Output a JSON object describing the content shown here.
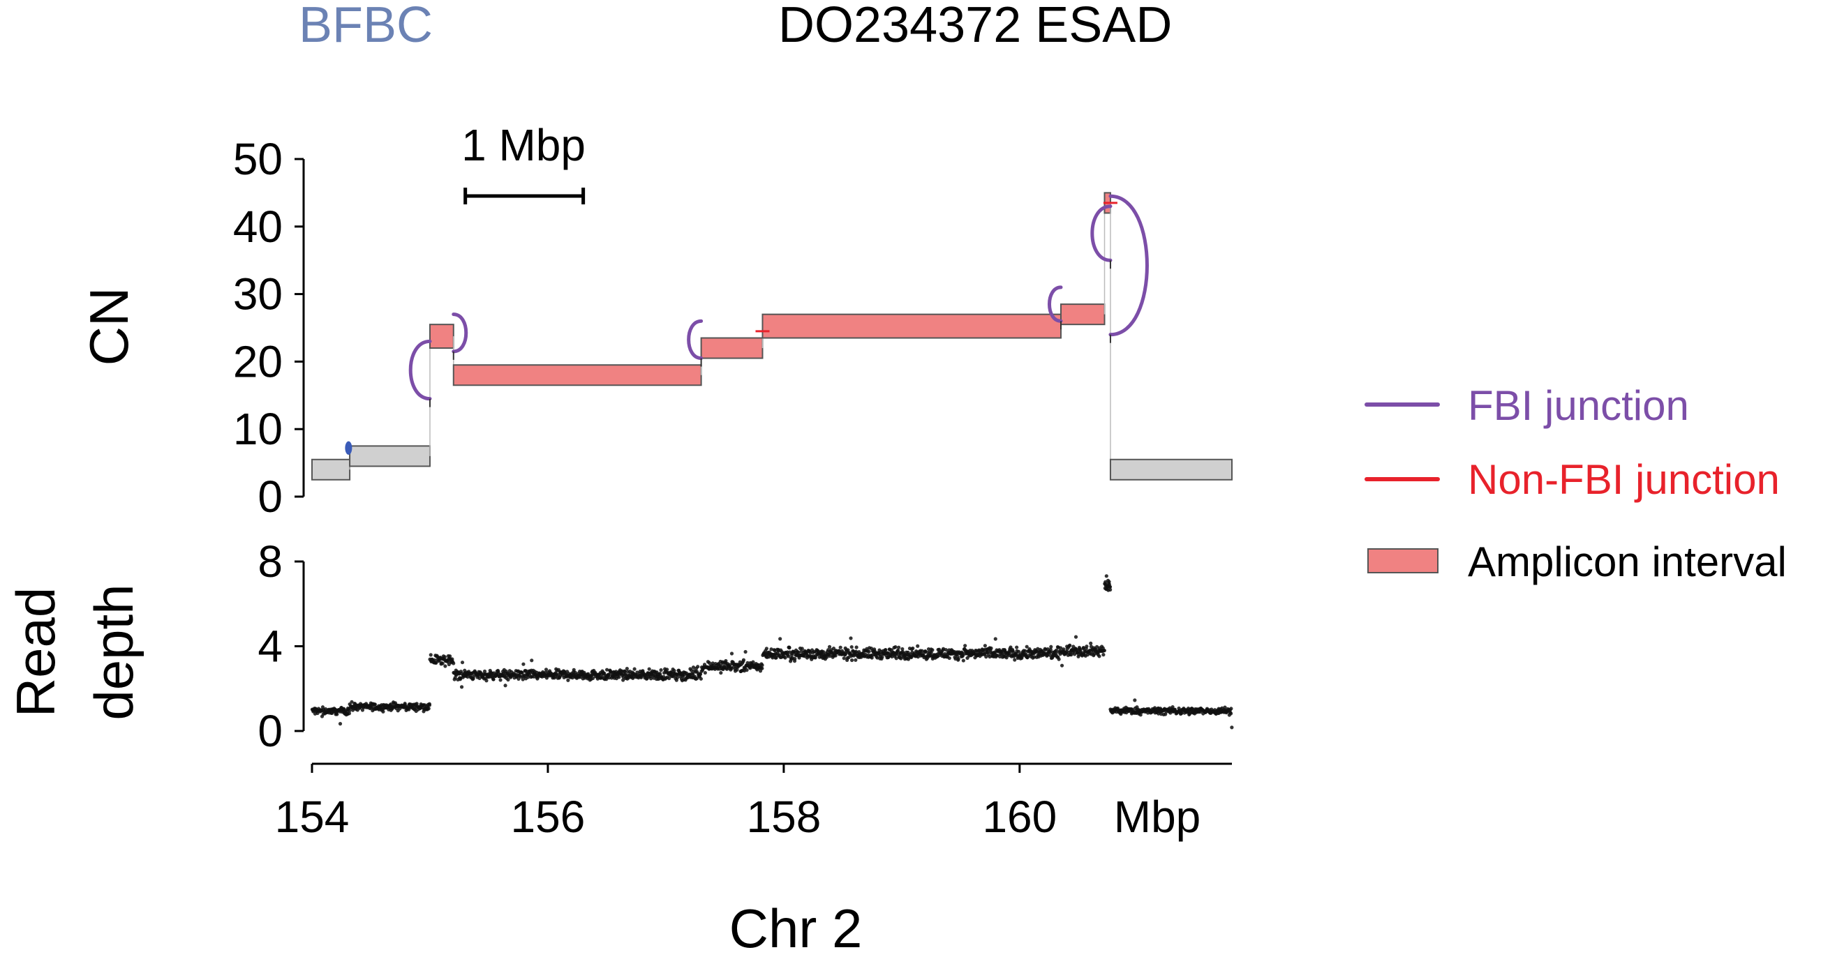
{
  "header": {
    "classification": "BFBC",
    "sample": "DO234372 ESAD"
  },
  "colors": {
    "classification": "#6b82b4",
    "fbi_junction": "#7c4ea8",
    "non_fbi_junction": "#e8222b",
    "amplicon": "#f08282",
    "background_interval": "#d0d0d0",
    "outline": "#555555",
    "read_points": "#111111"
  },
  "scale_bar": {
    "label": "1 Mbp",
    "start": 155.3,
    "end": 156.3
  },
  "legend": {
    "items": [
      {
        "label": "FBI junction",
        "kind": "line",
        "color_key": "fbi_junction"
      },
      {
        "label": "Non-FBI junction",
        "kind": "line",
        "color_key": "non_fbi_junction"
      },
      {
        "label": "Amplicon interval",
        "kind": "box",
        "color_key": "amplicon"
      }
    ]
  },
  "chart_data": [
    {
      "panel": "copy-number",
      "type": "bar",
      "title": "",
      "xlabel": "Chr 2",
      "ylabel": "CN",
      "xlim": [
        154.0,
        161.8
      ],
      "ylim": [
        0,
        50
      ],
      "yticks": [
        0,
        10,
        20,
        30,
        40,
        50
      ],
      "intervals": [
        {
          "start": 154.0,
          "end": 154.32,
          "low": 2.5,
          "high": 5.5,
          "amplicon": false
        },
        {
          "start": 154.32,
          "end": 155.0,
          "low": 4.5,
          "high": 7.5,
          "amplicon": false
        },
        {
          "start": 155.0,
          "end": 155.2,
          "low": 22.0,
          "high": 25.5,
          "amplicon": true
        },
        {
          "start": 155.2,
          "end": 157.3,
          "low": 16.5,
          "high": 19.5,
          "amplicon": true
        },
        {
          "start": 157.3,
          "end": 157.82,
          "low": 20.5,
          "high": 23.5,
          "amplicon": true
        },
        {
          "start": 157.82,
          "end": 160.35,
          "low": 23.5,
          "high": 27.0,
          "amplicon": true
        },
        {
          "start": 160.35,
          "end": 160.72,
          "low": 25.5,
          "high": 28.5,
          "amplicon": true
        },
        {
          "start": 160.72,
          "end": 160.77,
          "low": 42.0,
          "high": 45.0,
          "amplicon": true
        },
        {
          "start": 160.77,
          "end": 161.8,
          "low": 2.5,
          "high": 5.5,
          "amplicon": false
        }
      ],
      "junctions": [
        {
          "type": "FBI",
          "pos": 155.0,
          "cn_low": 14.5,
          "cn_high": 23.0,
          "side": "left"
        },
        {
          "type": "FBI",
          "pos": 155.2,
          "cn_low": 21.5,
          "cn_high": 27.0,
          "side": "right"
        },
        {
          "type": "FBI",
          "pos": 157.3,
          "cn_low": 20.5,
          "cn_high": 26.0,
          "side": "left"
        },
        {
          "type": "FBI",
          "pos": 160.35,
          "cn_low": 26.0,
          "cn_high": 31.0,
          "side": "left"
        },
        {
          "type": "FBI",
          "pos": 160.77,
          "cn_low": 35.0,
          "cn_high": 43.0,
          "side": "left"
        },
        {
          "type": "FBI",
          "pos": 160.77,
          "cn_low": 24.0,
          "cn_high": 44.5,
          "side": "right"
        },
        {
          "type": "FBI",
          "pos": 154.31,
          "cn_low": 6.2,
          "cn_high": 8.2,
          "side": "blue-marker"
        },
        {
          "type": "Non-FBI",
          "pos": 157.82,
          "cn_low": 24.5,
          "cn_high": 24.5,
          "side": "tick"
        },
        {
          "type": "Non-FBI",
          "pos": 160.77,
          "cn_low": 43.5,
          "cn_high": 43.5,
          "side": "tick"
        }
      ]
    },
    {
      "panel": "read-depth",
      "type": "scatter",
      "title": "",
      "xlabel": "Chr 2",
      "ylabel": "Read depth",
      "xlim": [
        154.0,
        161.8
      ],
      "ylim": [
        0,
        8
      ],
      "yticks": [
        0,
        4,
        8
      ],
      "xticks": [
        154,
        156,
        158,
        160
      ],
      "x_unit_label": "Mbp",
      "segments": [
        {
          "start": 154.0,
          "end": 154.32,
          "mean": 0.95
        },
        {
          "start": 154.32,
          "end": 155.0,
          "mean": 1.15
        },
        {
          "start": 155.0,
          "end": 155.2,
          "mean": 3.35
        },
        {
          "start": 155.2,
          "end": 157.3,
          "mean": 2.65
        },
        {
          "start": 157.3,
          "end": 157.82,
          "mean": 3.05
        },
        {
          "start": 157.82,
          "end": 160.35,
          "mean": 3.65
        },
        {
          "start": 160.35,
          "end": 160.72,
          "mean": 3.8
        },
        {
          "start": 160.72,
          "end": 160.77,
          "mean": 6.8
        },
        {
          "start": 160.77,
          "end": 161.8,
          "mean": 0.95
        }
      ]
    }
  ]
}
